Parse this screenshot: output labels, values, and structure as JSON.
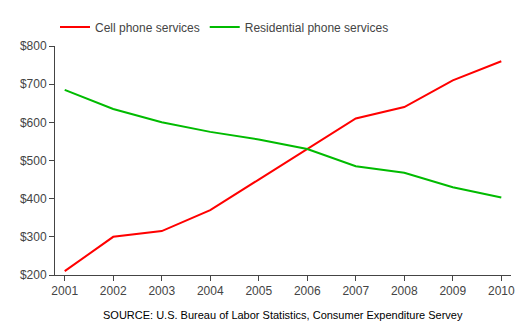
{
  "chart_data": {
    "type": "line",
    "x": [
      2001,
      2002,
      2003,
      2004,
      2005,
      2006,
      2007,
      2008,
      2009,
      2010
    ],
    "series": [
      {
        "name": "Cell phone services",
        "color": "#ff0000",
        "values": [
          210,
          300,
          315,
          370,
          450,
          530,
          610,
          640,
          710,
          760
        ]
      },
      {
        "name": "Residential phone services",
        "color": "#00bb00",
        "values": [
          685,
          635,
          600,
          575,
          555,
          530,
          485,
          468,
          430,
          403
        ]
      }
    ],
    "xlim": [
      2000.8,
      2010.2
    ],
    "xticks": [
      2001,
      2002,
      2003,
      2004,
      2005,
      2006,
      2007,
      2008,
      2009,
      2010
    ],
    "ylim": [
      200,
      800
    ],
    "yticks": [
      {
        "value": 200,
        "label": "$200"
      },
      {
        "value": 300,
        "label": "$300"
      },
      {
        "value": 400,
        "label": "$400"
      },
      {
        "value": 500,
        "label": "$500"
      },
      {
        "value": 600,
        "label": "$600"
      },
      {
        "value": 700,
        "label": "$700"
      },
      {
        "value": 800,
        "label": "$800"
      }
    ],
    "grid": false,
    "legend": "top",
    "annotations": [
      "SOURCE: U.S. Bureau of Labor Statistics, Consumer Expenditure Servey"
    ]
  }
}
